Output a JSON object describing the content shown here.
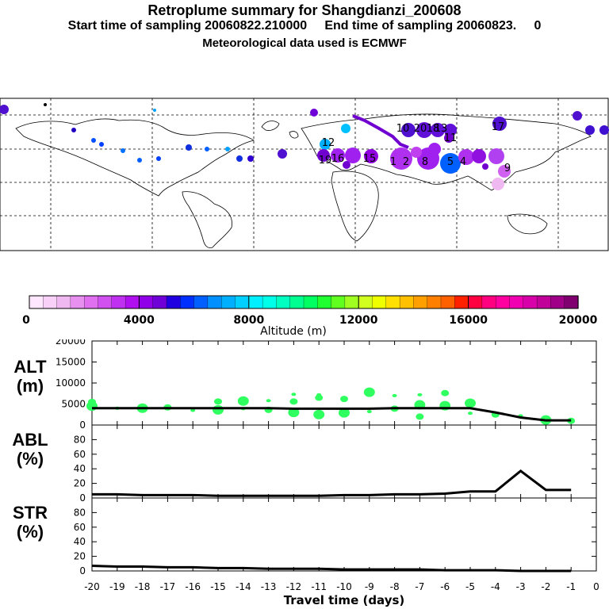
{
  "titles": {
    "line1": "Retroplume summary for Shangdianzi_200608",
    "line2": "Start time of sampling 20060822.210000     End time of sampling 20060823.     0",
    "line3": "Meteorological data used is ECMWF"
  },
  "colorbar": {
    "tick_labels": [
      "0",
      "4000",
      "8000",
      "12000",
      "16000",
      "20000"
    ],
    "label": "Altitude (m)",
    "colors": [
      "#ffe8ff",
      "#f8d0f8",
      "#f0b8f0",
      "#e890f0",
      "#e070f0",
      "#d050f0",
      "#c030f0",
      "#b010f0",
      "#9000e8",
      "#7000d8",
      "#2000e0",
      "#0030ff",
      "#0060ff",
      "#0090ff",
      "#00b0ff",
      "#00d0ff",
      "#00f0ff",
      "#00ffe8",
      "#00ffc0",
      "#00ff90",
      "#00ff60",
      "#20ff30",
      "#60ff20",
      "#a0ff20",
      "#d0ff20",
      "#f0ff00",
      "#ffe000",
      "#ffc000",
      "#ffa000",
      "#ff8000",
      "#ff6000",
      "#ff2000",
      "#ff0040",
      "#ff0080",
      "#ff00a0",
      "#f000b0",
      "#d800a8",
      "#c00098",
      "#a00088",
      "#800070"
    ]
  },
  "map": {
    "plume_labels": [
      "1",
      "2",
      "4",
      "5",
      "8",
      "9",
      "10",
      "11",
      "12",
      "13",
      "15",
      "16",
      "17",
      "18",
      "19",
      "20"
    ]
  },
  "chart_data": [
    {
      "type": "line",
      "name": "ALT",
      "ylabel_line1": "ALT",
      "ylabel_line2": "(m)",
      "ylim": [
        0,
        20000
      ],
      "yticks": [
        "0",
        "5000",
        "10000",
        "15000",
        "20000"
      ],
      "x": [
        -20,
        -19,
        -18,
        -17,
        -16,
        -15,
        -14,
        -13,
        -12,
        -11,
        -10,
        -9,
        -8,
        -7,
        -6,
        -5,
        -4,
        -3,
        -2,
        -1
      ],
      "values": [
        4000,
        4000,
        4000,
        4000,
        4000,
        4000,
        4000,
        4000,
        3900,
        3900,
        3900,
        3900,
        4000,
        4000,
        4000,
        4000,
        3000,
        1800,
        1100,
        1100
      ],
      "scatter": [
        {
          "x": -20,
          "y": 4500
        },
        {
          "x": -20,
          "y": 5500
        },
        {
          "x": -19,
          "y": 4000
        },
        {
          "x": -18,
          "y": 4000
        },
        {
          "x": -17,
          "y": 4200
        },
        {
          "x": -16,
          "y": 3500
        },
        {
          "x": -15,
          "y": 3600
        },
        {
          "x": -15,
          "y": 5600
        },
        {
          "x": -14,
          "y": 3900
        },
        {
          "x": -14,
          "y": 5700
        },
        {
          "x": -13,
          "y": 3600
        },
        {
          "x": -13,
          "y": 5800
        },
        {
          "x": -12,
          "y": 3000
        },
        {
          "x": -12,
          "y": 5600
        },
        {
          "x": -12,
          "y": 7300
        },
        {
          "x": -11,
          "y": 2500
        },
        {
          "x": -11,
          "y": 6500
        },
        {
          "x": -11,
          "y": 7200
        },
        {
          "x": -10,
          "y": 2900
        },
        {
          "x": -10,
          "y": 6200
        },
        {
          "x": -9,
          "y": 3200
        },
        {
          "x": -9,
          "y": 7800
        },
        {
          "x": -8,
          "y": 3900
        },
        {
          "x": -8,
          "y": 7000
        },
        {
          "x": -7,
          "y": 4800
        },
        {
          "x": -7,
          "y": 2000
        },
        {
          "x": -7,
          "y": 7200
        },
        {
          "x": -6,
          "y": 4600
        },
        {
          "x": -6,
          "y": 7600
        },
        {
          "x": -5,
          "y": 2800
        },
        {
          "x": -5,
          "y": 5200
        },
        {
          "x": -4,
          "y": 2500
        },
        {
          "x": -3,
          "y": 2200
        },
        {
          "x": -2,
          "y": 1200
        },
        {
          "x": -1,
          "y": 1000
        }
      ]
    },
    {
      "type": "line",
      "name": "ABL",
      "ylabel_line1": "ABL",
      "ylabel_line2": "(%)",
      "ylim": [
        0,
        100
      ],
      "yticks": [
        "0",
        "20",
        "40",
        "60",
        "80"
      ],
      "x": [
        -20,
        -19,
        -18,
        -17,
        -16,
        -15,
        -14,
        -13,
        -12,
        -11,
        -10,
        -9,
        -8,
        -7,
        -6,
        -5,
        -4,
        -3,
        -2,
        -1
      ],
      "values": [
        5,
        5,
        4,
        4,
        4,
        3,
        3,
        3,
        3,
        3,
        4,
        4,
        5,
        5,
        6,
        9,
        9,
        37,
        11,
        11
      ]
    },
    {
      "type": "line",
      "name": "STR",
      "ylabel_line1": "STR",
      "ylabel_line2": "(%)",
      "ylim": [
        0,
        100
      ],
      "yticks": [
        "0",
        "20",
        "40",
        "60",
        "80"
      ],
      "x": [
        -20,
        -19,
        -18,
        -17,
        -16,
        -15,
        -14,
        -13,
        -12,
        -11,
        -10,
        -9,
        -8,
        -7,
        -6,
        -5,
        -4,
        -3,
        -2,
        -1
      ],
      "values": [
        7,
        6,
        6,
        5,
        5,
        4,
        4,
        3,
        3,
        3,
        2,
        2,
        2,
        2,
        1,
        1,
        1,
        0,
        0,
        0
      ]
    },
    {
      "type": "axis",
      "xlabel": "Travel time (days)",
      "xticks": [
        "-20",
        "-19",
        "-18",
        "-17",
        "-16",
        "-15",
        "-14",
        "-13",
        "-12",
        "-11",
        "-10",
        "-9",
        "-8",
        "-7",
        "-6",
        "-5",
        "-4",
        "-3",
        "-2",
        "-1",
        "0"
      ]
    }
  ]
}
